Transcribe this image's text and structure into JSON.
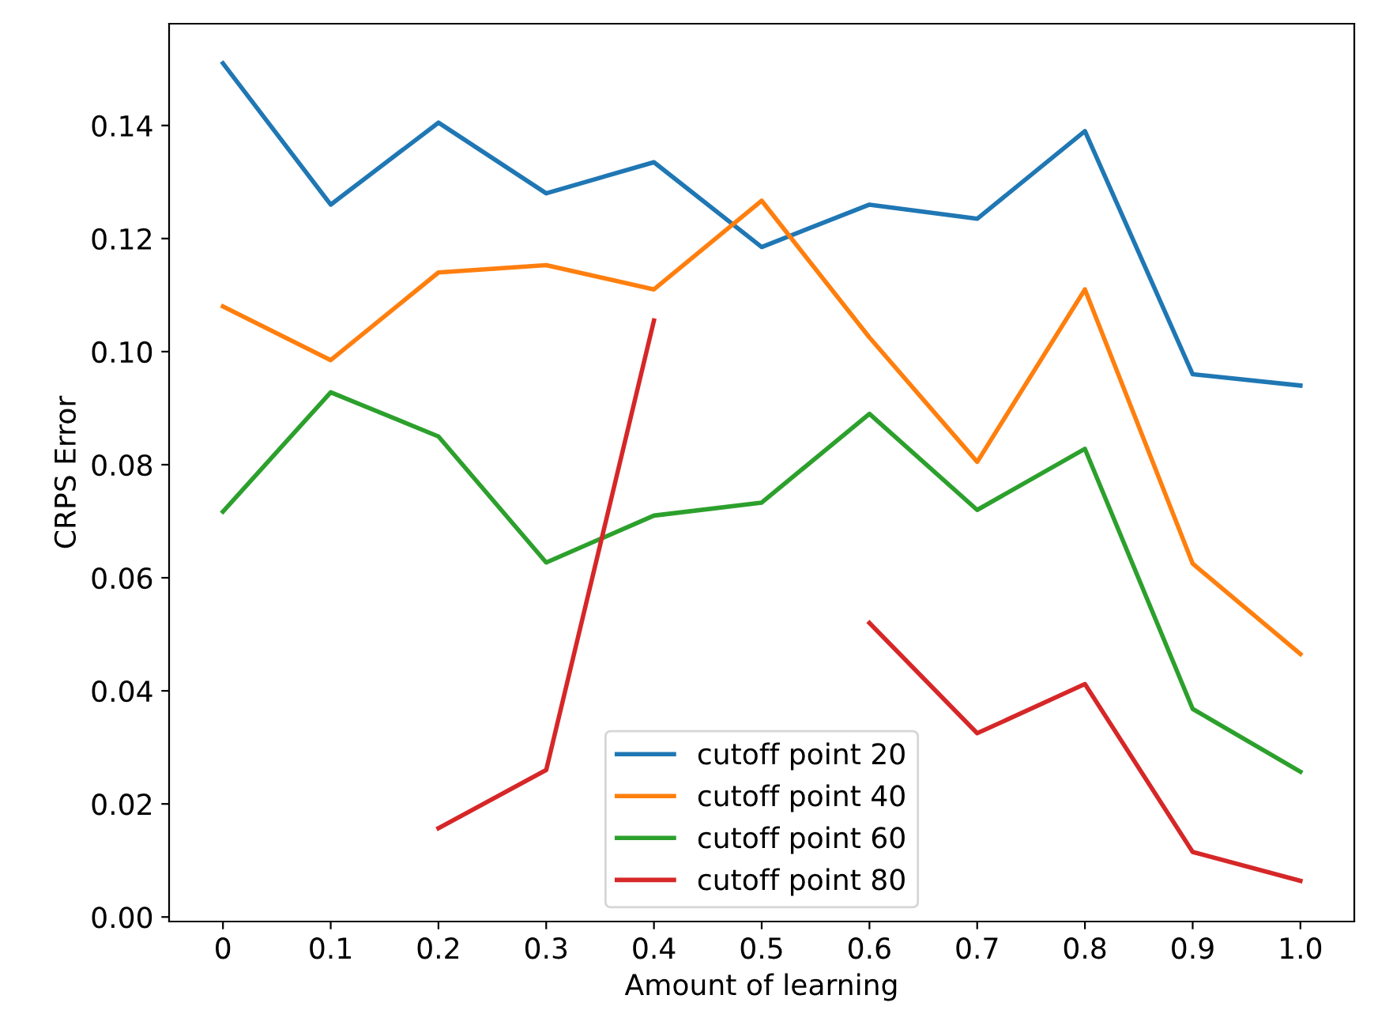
{
  "chart_data": {
    "type": "line",
    "xlabel": "Amount of learning",
    "ylabel": "CRPS Error",
    "categories": [
      "0",
      "0.1",
      "0.2",
      "0.3",
      "0.4",
      "0.5",
      "0.6",
      "0.7",
      "0.8",
      "0.9",
      "1.0"
    ],
    "series": [
      {
        "name": "cutoff point 20",
        "color": "#1f77b4",
        "values": [
          0.151,
          0.126,
          0.1405,
          0.128,
          0.1335,
          0.1185,
          0.126,
          0.1235,
          0.139,
          0.096,
          0.094
        ]
      },
      {
        "name": "cutoff point 40",
        "color": "#ff7f0e",
        "values": [
          0.108,
          0.0985,
          0.114,
          0.1153,
          0.111,
          0.1267,
          0.1025,
          0.0805,
          0.111,
          0.0625,
          0.0465
        ]
      },
      {
        "name": "cutoff point 60",
        "color": "#2ca02c",
        "values": [
          0.0717,
          0.0928,
          0.085,
          0.0627,
          0.071,
          0.0733,
          0.089,
          0.072,
          0.0828,
          0.0368,
          0.0257
        ]
      },
      {
        "name": "cutoff point 80",
        "color": "#d62728",
        "values": [
          null,
          null,
          0.0157,
          0.026,
          0.1055,
          null,
          0.052,
          0.0325,
          0.0412,
          0.0115,
          0.0064
        ]
      }
    ],
    "ylim": [
      -0.0008,
      0.158
    ],
    "yticks": [
      {
        "value": 0,
        "label": "0.00"
      },
      {
        "value": 0.02,
        "label": "0.02"
      },
      {
        "value": 0.04,
        "label": "0.04"
      },
      {
        "value": 0.06,
        "label": "0.06"
      },
      {
        "value": 0.08,
        "label": "0.08"
      },
      {
        "value": 0.1,
        "label": "0.10"
      },
      {
        "value": 0.12,
        "label": "0.12"
      },
      {
        "value": 0.14,
        "label": "0.14"
      }
    ],
    "legend": "bottom",
    "grid": false,
    "marker": "none",
    "line_style": "solid"
  }
}
